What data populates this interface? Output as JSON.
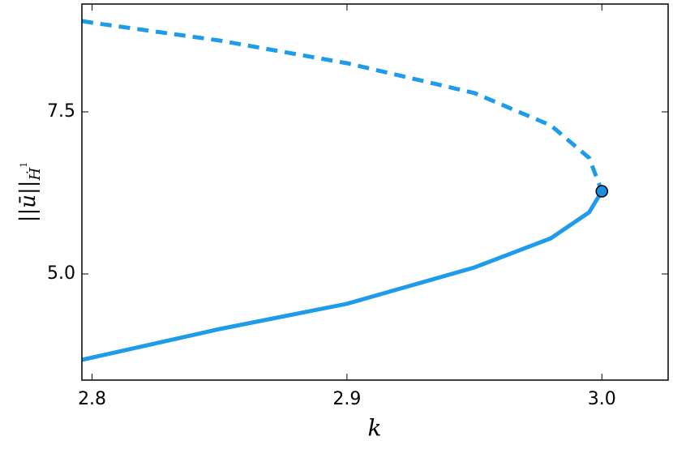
{
  "chart_data": {
    "type": "line",
    "xlabel": "k",
    "ylabel": {
      "main": "||ū||",
      "sub": "Ḣ",
      "sup": "1"
    },
    "series": [
      {
        "style": "solid",
        "color": "#1e9bea",
        "x": [
          2.796,
          2.85,
          2.9,
          2.95,
          2.98,
          2.995,
          3.0
        ],
        "values": [
          3.675,
          4.15,
          4.54,
          5.1,
          5.55,
          5.95,
          6.275
        ]
      },
      {
        "style": "dashed",
        "color": "#1e9bea",
        "x": [
          2.796,
          2.8,
          2.85,
          2.9,
          2.95,
          2.98,
          2.995,
          3.0
        ],
        "values": [
          8.9,
          8.875,
          8.6,
          8.25,
          7.79,
          7.29,
          6.79,
          6.275
        ]
      }
    ],
    "points": [
      {
        "x": 3.0,
        "y": 6.275,
        "color": "#1b8ee0"
      }
    ],
    "xlim": [
      2.796,
      3.026
    ],
    "ylim": [
      3.3625,
      9.1625
    ],
    "xticks": [
      2.8,
      2.9,
      {
        "value": 3,
        "label": "3.0"
      }
    ],
    "yticks": [
      {
        "value": 5,
        "label": "5.0"
      },
      7.5
    ]
  }
}
